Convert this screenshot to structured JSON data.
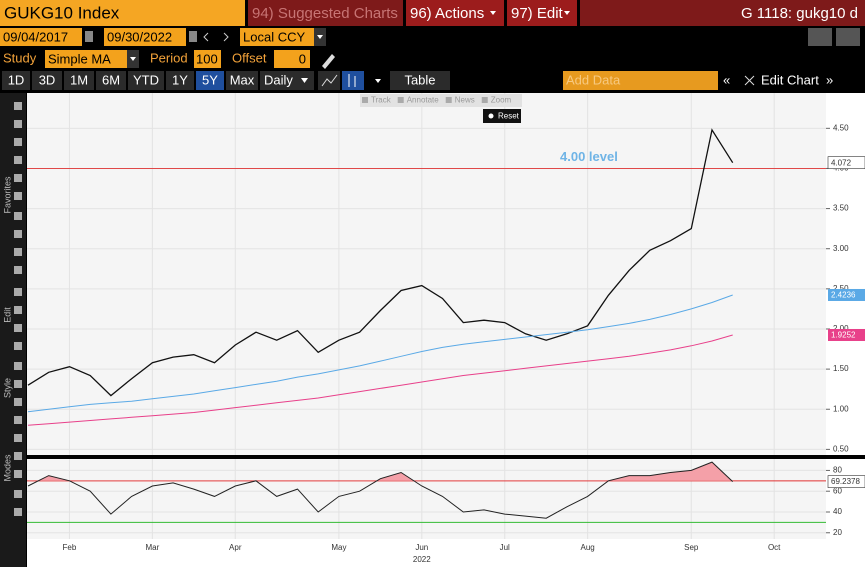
{
  "toolbar": {
    "ticker": "GUKG10 Index",
    "suggested": "94) Suggested Charts",
    "actions": "96) Actions",
    "edit": "97) Edit",
    "code": "G 1118: gukg10 d"
  },
  "range": {
    "start": "09/04/2017",
    "end": "09/30/2022",
    "currency": "Local CCY"
  },
  "study": {
    "label": "Study",
    "name": "Simple MA",
    "period_label": "Period",
    "period": 100,
    "offset_label": "Offset",
    "offset": 0
  },
  "periods": [
    "1D",
    "3D",
    "1M",
    "6M",
    "YTD",
    "1Y",
    "5Y",
    "Max"
  ],
  "frequency": "Daily",
  "table": "Table",
  "add_data": "Add Data",
  "edit_chart": "Edit Chart",
  "chart_tools": [
    "Track",
    "Annotate",
    "News",
    "Zoom"
  ],
  "reset": "Reset",
  "side_labels": [
    "Favorites",
    "Edit",
    "Style",
    "Modes"
  ],
  "chart_data": [
    {
      "type": "line",
      "ylim": [
        0.43,
        4.94
      ],
      "yticks": [
        {
          "value": 0.5,
          "label": "0.50"
        },
        {
          "value": 1.0,
          "label": "1.00"
        },
        {
          "value": 1.5,
          "label": "1.50"
        },
        {
          "value": 2.0,
          "label": "2.00"
        },
        {
          "value": 2.5,
          "label": "2.50"
        },
        {
          "value": 3.0,
          "label": "3.00"
        },
        {
          "value": 3.5,
          "label": "3.50"
        },
        {
          "value": 4.0,
          "label": "4.00"
        },
        {
          "value": 4.5,
          "label": "4.50"
        }
      ],
      "grid": true,
      "hline": {
        "value": 4.0,
        "label": "4.00 level",
        "color": "#e04848",
        "label_color": "#6fb4e6"
      },
      "series": [
        {
          "color": "#111111",
          "values": [
            1.3,
            1.46,
            1.53,
            1.42,
            1.17,
            1.38,
            1.58,
            1.65,
            1.68,
            1.58,
            1.8,
            1.96,
            1.86,
            1.98,
            1.71,
            1.86,
            1.96,
            2.23,
            2.48,
            2.54,
            2.38,
            2.08,
            2.11,
            2.08,
            1.94,
            1.86,
            1.94,
            2.04,
            2.42,
            2.73,
            2.98,
            3.1,
            3.25,
            4.48,
            4.072,
            null,
            null,
            null,
            null
          ]
        },
        {
          "color": "#5aa9e6",
          "values": [
            0.97,
            1.0,
            1.03,
            1.06,
            1.08,
            1.1,
            1.13,
            1.16,
            1.19,
            1.23,
            1.27,
            1.31,
            1.35,
            1.4,
            1.44,
            1.49,
            1.54,
            1.6,
            1.66,
            1.72,
            1.77,
            1.81,
            1.84,
            1.87,
            1.9,
            1.93,
            1.96,
            1.99,
            2.03,
            2.07,
            2.12,
            2.18,
            2.25,
            2.33,
            2.4236,
            null,
            null,
            null,
            null
          ]
        },
        {
          "color": "#e8408a",
          "values": [
            0.8,
            0.82,
            0.84,
            0.86,
            0.88,
            0.9,
            0.92,
            0.94,
            0.96,
            0.99,
            1.02,
            1.05,
            1.08,
            1.11,
            1.14,
            1.18,
            1.22,
            1.26,
            1.3,
            1.34,
            1.38,
            1.42,
            1.45,
            1.48,
            1.51,
            1.54,
            1.57,
            1.6,
            1.63,
            1.66,
            1.7,
            1.74,
            1.79,
            1.85,
            1.9252,
            null,
            null,
            null,
            null
          ]
        }
      ]
    },
    {
      "type": "line",
      "ylim": [
        14,
        91
      ],
      "yticks": [
        20,
        40,
        60,
        80
      ],
      "grid": true,
      "categories": [
        null,
        null,
        "Feb",
        null,
        null,
        null,
        "Mar",
        null,
        null,
        null,
        "Apr",
        null,
        null,
        null,
        null,
        "May",
        null,
        null,
        null,
        "Jun",
        null,
        null,
        null,
        "Jul",
        null,
        null,
        null,
        "Aug",
        null,
        null,
        null,
        null,
        "Sep",
        null,
        null,
        null,
        "Oct",
        null,
        null
      ],
      "x_sublabel": "2022",
      "hlines": [
        {
          "value": 70,
          "color": "#e03030"
        },
        {
          "value": 30,
          "color": "#33bb33"
        }
      ],
      "overbought_color": "#f4a0a8",
      "series": [
        {
          "color": "#222222",
          "values": [
            65,
            75,
            70,
            60,
            38,
            55,
            65,
            68,
            62,
            55,
            65,
            70,
            55,
            62,
            40,
            55,
            60,
            72,
            78,
            65,
            55,
            40,
            42,
            38,
            36,
            34,
            45,
            55,
            70,
            75,
            75,
            78,
            80,
            88,
            69.2378,
            null,
            null,
            null,
            null
          ]
        }
      ]
    }
  ]
}
